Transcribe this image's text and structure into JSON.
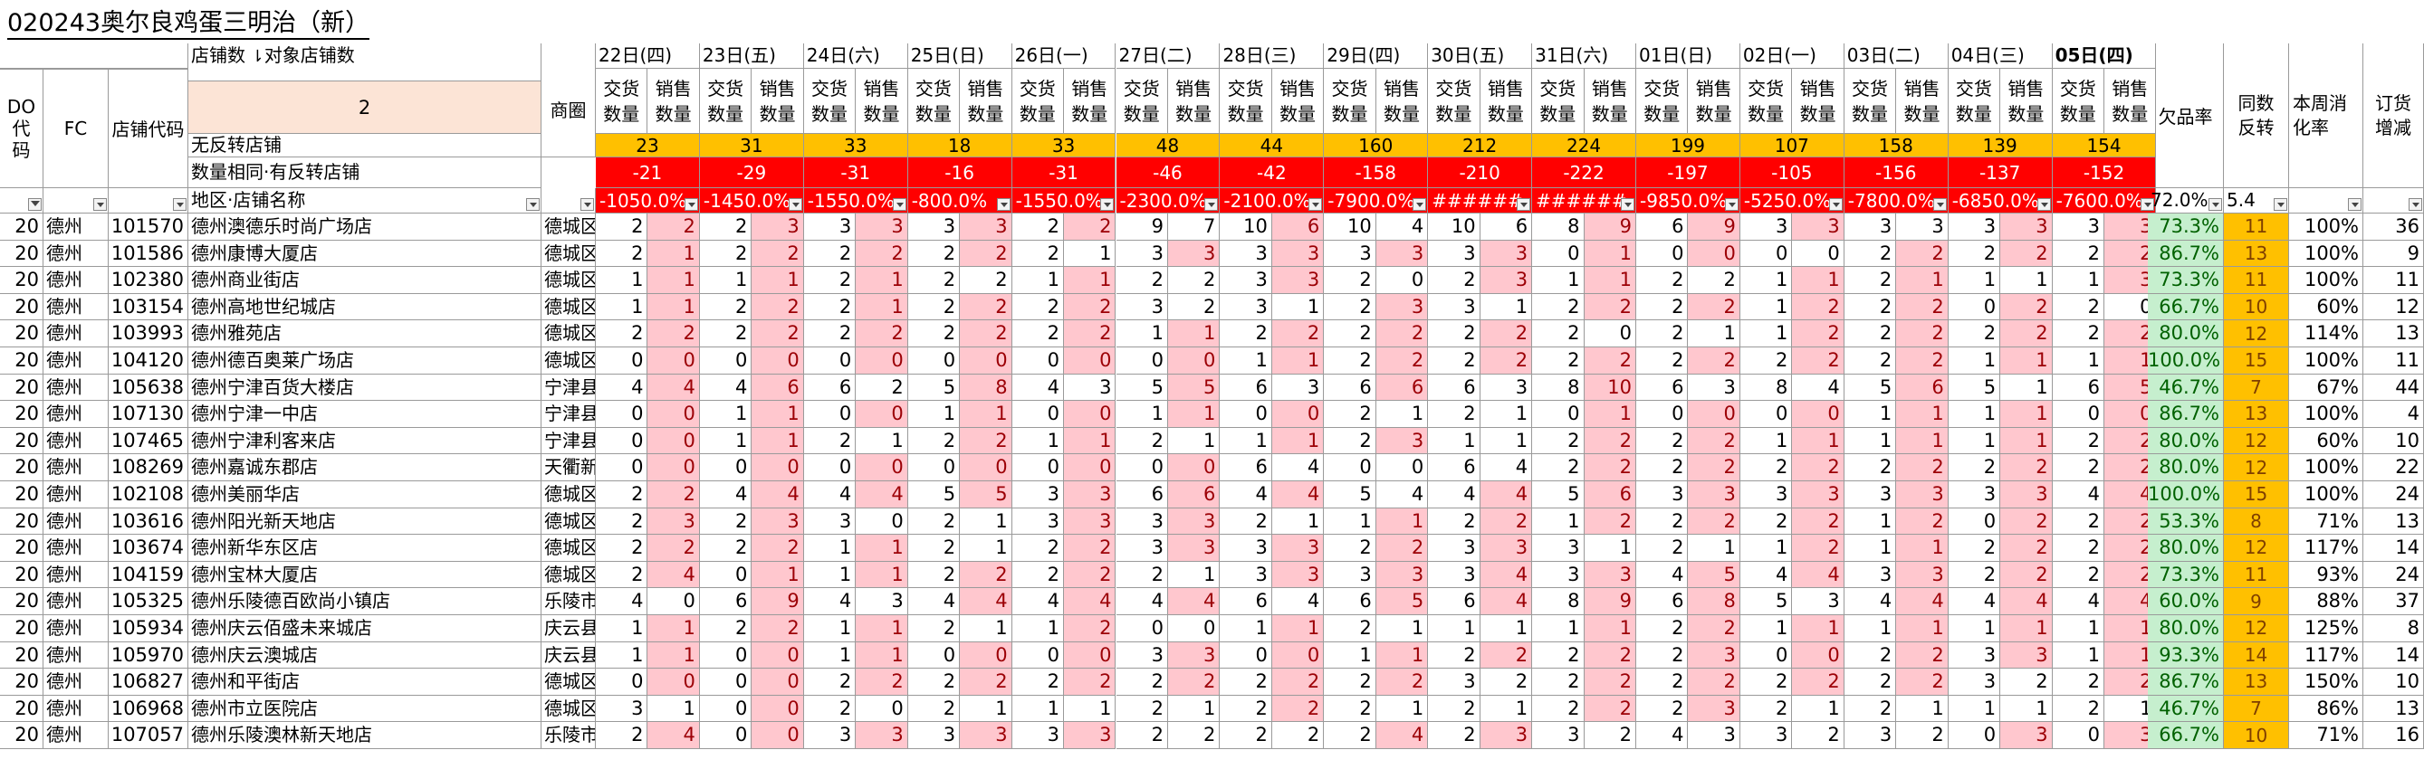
{
  "title": "020243奥尔良鸡蛋三明治（新）",
  "colors": {
    "orange_band": "#ffc000",
    "red_band": "#ff0000",
    "pink_fill": "#ffc7ce",
    "pink_text": "#9c0006",
    "green_fill": "#c6efce",
    "green_text": "#006100",
    "header_peach": "#fce4d6"
  },
  "header": {
    "do_label": "DO\n代\n码",
    "fc_label": "FC",
    "store_code_label": "店铺代码",
    "store_count_label": "店铺数",
    "target_count_label": "对象店铺数",
    "sort_icon": "sort-desc-icon",
    "store_count_value": "2",
    "district_label": "商圈",
    "row_no_return_label": "无反转店铺",
    "row_same_qty_label": "数量相同·有反转店铺",
    "row_region_label": "地区·店铺名称",
    "delivery_label": "交货\n数量",
    "sales_label": "销售\n数量",
    "shortage_rate_label": "欠品率",
    "same_reverse_label": "同数\n反转",
    "week_rate_label": "本周消\n化率",
    "order_change_label": "订货\n增减",
    "summary_shortage": "72.0%",
    "summary_reverse": "5.4"
  },
  "dates": [
    {
      "label": "22日(四)",
      "yellow": "23",
      "red": "-21",
      "pct": "-1050.0%"
    },
    {
      "label": "23日(五)",
      "yellow": "31",
      "red": "-29",
      "pct": "-1450.0%"
    },
    {
      "label": "24日(六)",
      "yellow": "33",
      "red": "-31",
      "pct": "-1550.0%"
    },
    {
      "label": "25日(日)",
      "yellow": "18",
      "red": "-16",
      "pct": "-800.0%"
    },
    {
      "label": "26日(一)",
      "yellow": "33",
      "red": "-31",
      "pct": "-1550.0%"
    },
    {
      "label": "27日(二)",
      "yellow": "48",
      "red": "-46",
      "pct": "-2300.0%"
    },
    {
      "label": "28日(三)",
      "yellow": "44",
      "red": "-42",
      "pct": "-2100.0%"
    },
    {
      "label": "29日(四)",
      "yellow": "160",
      "red": "-158",
      "pct": "-7900.0%"
    },
    {
      "label": "30日(五)",
      "yellow": "212",
      "red": "-210",
      "pct": "######"
    },
    {
      "label": "31日(六)",
      "yellow": "224",
      "red": "-222",
      "pct": "######"
    },
    {
      "label": "01日(日)",
      "yellow": "199",
      "red": "-197",
      "pct": "-9850.0%"
    },
    {
      "label": "02日(一)",
      "yellow": "107",
      "red": "-105",
      "pct": "-5250.0%"
    },
    {
      "label": "03日(二)",
      "yellow": "158",
      "red": "-156",
      "pct": "-7800.0%"
    },
    {
      "label": "04日(三)",
      "yellow": "139",
      "red": "-137",
      "pct": "-6850.0%"
    },
    {
      "label": "05日(四)",
      "yellow": "154",
      "red": "-152",
      "pct": "-7600.0%"
    }
  ],
  "rows": [
    {
      "do": "20",
      "fc": "德州",
      "code": "101570",
      "name": "德州澳德乐时尚广场店",
      "area": "德城区",
      "v": [
        2,
        2,
        2,
        3,
        3,
        3,
        3,
        3,
        2,
        2,
        9,
        7,
        10,
        6,
        10,
        4,
        10,
        6,
        8,
        9,
        6,
        9,
        3,
        3,
        3,
        3,
        3,
        3,
        3,
        3
      ],
      "pink": [
        1,
        3,
        5,
        7,
        9,
        13,
        19,
        21,
        23,
        27,
        29
      ],
      "rate": "73.3%",
      "rev": "11",
      "cons": "100%",
      "ord": "36"
    },
    {
      "do": "20",
      "fc": "德州",
      "code": "101586",
      "name": "德州康博大厦店",
      "area": "德城区",
      "v": [
        2,
        1,
        2,
        2,
        2,
        2,
        2,
        2,
        2,
        1,
        3,
        3,
        3,
        3,
        3,
        3,
        3,
        3,
        0,
        1,
        0,
        0,
        0,
        0,
        2,
        2,
        2,
        2,
        2,
        2
      ],
      "pink": [
        1,
        3,
        5,
        7,
        11,
        13,
        15,
        17,
        19,
        21,
        25,
        27,
        29
      ],
      "rate": "86.7%",
      "rev": "13",
      "cons": "100%",
      "ord": "9"
    },
    {
      "do": "20",
      "fc": "德州",
      "code": "102380",
      "name": "德州商业街店",
      "area": "德城区",
      "v": [
        1,
        1,
        1,
        1,
        2,
        1,
        2,
        2,
        1,
        1,
        2,
        2,
        3,
        3,
        2,
        0,
        2,
        3,
        1,
        1,
        2,
        2,
        1,
        1,
        2,
        1,
        1,
        1,
        1,
        3
      ],
      "pink": [
        1,
        3,
        5,
        9,
        13,
        17,
        19,
        23,
        25,
        29
      ],
      "rate": "73.3%",
      "rev": "11",
      "cons": "100%",
      "ord": "11"
    },
    {
      "do": "20",
      "fc": "德州",
      "code": "103154",
      "name": "德州高地世纪城店",
      "area": "德城区",
      "v": [
        1,
        1,
        2,
        2,
        2,
        1,
        2,
        2,
        2,
        2,
        3,
        2,
        3,
        1,
        2,
        3,
        3,
        1,
        2,
        2,
        2,
        2,
        1,
        2,
        2,
        2,
        0,
        2,
        2,
        0
      ],
      "pink": [
        1,
        3,
        5,
        7,
        9,
        15,
        19,
        21,
        23,
        25,
        27
      ],
      "rate": "66.7%",
      "rev": "10",
      "cons": "60%",
      "ord": "12"
    },
    {
      "do": "20",
      "fc": "德州",
      "code": "103993",
      "name": "德州雅苑店",
      "area": "德城区",
      "v": [
        2,
        2,
        2,
        2,
        2,
        2,
        2,
        2,
        2,
        2,
        1,
        1,
        2,
        2,
        2,
        2,
        2,
        2,
        2,
        0,
        2,
        1,
        1,
        2,
        2,
        2,
        2,
        2,
        2,
        2
      ],
      "pink": [
        1,
        3,
        5,
        7,
        9,
        11,
        13,
        15,
        17,
        23,
        25,
        27,
        29
      ],
      "rate": "80.0%",
      "rev": "12",
      "cons": "114%",
      "ord": "13"
    },
    {
      "do": "20",
      "fc": "德州",
      "code": "104120",
      "name": "德州德百奥莱广场店",
      "area": "德城区",
      "v": [
        0,
        0,
        0,
        0,
        0,
        0,
        0,
        0,
        0,
        0,
        0,
        0,
        1,
        1,
        2,
        2,
        2,
        2,
        2,
        2,
        2,
        2,
        2,
        2,
        2,
        2,
        1,
        1,
        1,
        1
      ],
      "pink": [
        1,
        3,
        5,
        7,
        9,
        11,
        13,
        15,
        17,
        19,
        21,
        23,
        25,
        27,
        29
      ],
      "rate": "100.0%",
      "rev": "15",
      "cons": "100%",
      "ord": "11"
    },
    {
      "do": "20",
      "fc": "德州",
      "code": "105638",
      "name": "德州宁津百货大楼店",
      "area": "宁津县",
      "v": [
        4,
        4,
        4,
        6,
        6,
        2,
        5,
        8,
        4,
        3,
        5,
        5,
        6,
        3,
        6,
        6,
        6,
        3,
        8,
        10,
        6,
        3,
        8,
        4,
        5,
        6,
        5,
        1,
        6,
        5
      ],
      "pink": [
        1,
        3,
        7,
        11,
        15,
        19,
        25,
        29
      ],
      "rate": "46.7%",
      "rev": "7",
      "cons": "67%",
      "ord": "44"
    },
    {
      "do": "20",
      "fc": "德州",
      "code": "107130",
      "name": "德州宁津一中店",
      "area": "宁津县",
      "v": [
        0,
        0,
        1,
        1,
        0,
        0,
        1,
        1,
        0,
        0,
        1,
        1,
        0,
        0,
        2,
        1,
        2,
        1,
        0,
        1,
        0,
        0,
        0,
        0,
        1,
        1,
        1,
        1,
        0,
        0
      ],
      "pink": [
        1,
        3,
        5,
        7,
        9,
        11,
        13,
        19,
        21,
        23,
        25,
        27,
        29
      ],
      "rate": "86.7%",
      "rev": "13",
      "cons": "100%",
      "ord": "4"
    },
    {
      "do": "20",
      "fc": "德州",
      "code": "107465",
      "name": "德州宁津利客来店",
      "area": "宁津县",
      "v": [
        0,
        0,
        1,
        1,
        2,
        1,
        2,
        2,
        1,
        1,
        2,
        1,
        1,
        1,
        2,
        3,
        1,
        1,
        2,
        2,
        2,
        2,
        1,
        1,
        1,
        1,
        1,
        1,
        2,
        2
      ],
      "pink": [
        1,
        3,
        7,
        9,
        13,
        15,
        19,
        21,
        23,
        25,
        27,
        29
      ],
      "rate": "80.0%",
      "rev": "12",
      "cons": "60%",
      "ord": "10"
    },
    {
      "do": "20",
      "fc": "德州",
      "code": "108269",
      "name": "德州嘉诚东郡店",
      "area": "天衢新",
      "v": [
        0,
        0,
        0,
        0,
        0,
        0,
        0,
        0,
        0,
        0,
        0,
        0,
        6,
        4,
        0,
        0,
        6,
        4,
        2,
        2,
        2,
        2,
        2,
        2,
        2,
        2,
        2,
        2,
        2,
        2
      ],
      "pink": [
        1,
        3,
        5,
        7,
        9,
        11,
        19,
        21,
        23,
        25,
        27,
        29
      ],
      "rate": "80.0%",
      "rev": "12",
      "cons": "100%",
      "ord": "22"
    },
    {
      "do": "20",
      "fc": "德州",
      "code": "102108",
      "name": "德州美丽华店",
      "area": "德城区",
      "v": [
        2,
        2,
        4,
        4,
        4,
        4,
        5,
        5,
        3,
        3,
        6,
        6,
        4,
        4,
        5,
        4,
        4,
        4,
        5,
        6,
        3,
        3,
        3,
        3,
        3,
        3,
        3,
        3,
        4,
        4
      ],
      "pink": [
        1,
        3,
        5,
        7,
        9,
        11,
        13,
        17,
        19,
        21,
        23,
        25,
        27,
        29
      ],
      "rate": "100.0%",
      "rev": "15",
      "cons": "100%",
      "ord": "24"
    },
    {
      "do": "20",
      "fc": "德州",
      "code": "103616",
      "name": "德州阳光新天地店",
      "area": "德城区",
      "v": [
        2,
        3,
        2,
        3,
        3,
        0,
        2,
        1,
        3,
        3,
        3,
        3,
        2,
        1,
        1,
        1,
        2,
        2,
        1,
        2,
        2,
        2,
        2,
        2,
        1,
        2,
        0,
        2,
        2,
        2
      ],
      "pink": [
        1,
        3,
        9,
        11,
        15,
        17,
        19,
        21,
        23,
        25,
        27,
        29
      ],
      "rate": "53.3%",
      "rev": "8",
      "cons": "71%",
      "ord": "13"
    },
    {
      "do": "20",
      "fc": "德州",
      "code": "103674",
      "name": "德州新华东区店",
      "area": "德城区",
      "v": [
        2,
        2,
        2,
        2,
        1,
        1,
        2,
        1,
        2,
        2,
        3,
        3,
        3,
        3,
        2,
        2,
        3,
        3,
        3,
        1,
        2,
        1,
        1,
        2,
        1,
        1,
        2,
        2,
        2,
        2
      ],
      "pink": [
        1,
        3,
        5,
        9,
        11,
        13,
        15,
        17,
        23,
        25,
        27,
        29
      ],
      "rate": "80.0%",
      "rev": "12",
      "cons": "117%",
      "ord": "14"
    },
    {
      "do": "20",
      "fc": "德州",
      "code": "104159",
      "name": "德州宝林大厦店",
      "area": "德城区",
      "v": [
        2,
        4,
        0,
        1,
        1,
        1,
        2,
        2,
        2,
        2,
        2,
        1,
        3,
        3,
        3,
        3,
        3,
        4,
        3,
        3,
        4,
        5,
        4,
        4,
        3,
        3,
        2,
        2,
        2,
        2
      ],
      "pink": [
        1,
        3,
        5,
        7,
        9,
        13,
        15,
        17,
        19,
        21,
        23,
        25,
        27,
        29
      ],
      "rate": "73.3%",
      "rev": "11",
      "cons": "93%",
      "ord": "24"
    },
    {
      "do": "20",
      "fc": "德州",
      "code": "105325",
      "name": "德州乐陵德百欧尚小镇店",
      "area": "乐陵市",
      "v": [
        4,
        0,
        6,
        9,
        4,
        3,
        4,
        4,
        4,
        4,
        4,
        4,
        6,
        4,
        6,
        5,
        6,
        4,
        8,
        9,
        6,
        8,
        5,
        3,
        4,
        4,
        4,
        4,
        4,
        4
      ],
      "pink": [
        3,
        7,
        9,
        11,
        15,
        17,
        19,
        21,
        25,
        27,
        29
      ],
      "rate": "60.0%",
      "rev": "9",
      "cons": "88%",
      "ord": "37"
    },
    {
      "do": "20",
      "fc": "德州",
      "code": "105934",
      "name": "德州庆云佰盛未来城店",
      "area": "庆云县",
      "v": [
        1,
        1,
        2,
        2,
        1,
        1,
        2,
        1,
        1,
        2,
        0,
        0,
        1,
        1,
        2,
        1,
        1,
        1,
        1,
        1,
        2,
        2,
        1,
        1,
        1,
        1,
        1,
        1,
        1,
        1
      ],
      "pink": [
        1,
        3,
        5,
        9,
        13,
        19,
        21,
        23,
        25,
        27,
        29
      ],
      "rate": "80.0%",
      "rev": "12",
      "cons": "125%",
      "ord": "8"
    },
    {
      "do": "20",
      "fc": "德州",
      "code": "105970",
      "name": "德州庆云澳城店",
      "area": "庆云县",
      "v": [
        1,
        1,
        0,
        0,
        1,
        1,
        0,
        0,
        0,
        0,
        3,
        3,
        0,
        0,
        1,
        1,
        2,
        2,
        2,
        2,
        2,
        3,
        0,
        0,
        2,
        2,
        3,
        3,
        1,
        1
      ],
      "pink": [
        1,
        3,
        5,
        7,
        9,
        11,
        13,
        15,
        17,
        19,
        21,
        23,
        25,
        27,
        29
      ],
      "rate": "93.3%",
      "rev": "14",
      "cons": "117%",
      "ord": "14"
    },
    {
      "do": "20",
      "fc": "德州",
      "code": "106827",
      "name": "德州和平街店",
      "area": "德城区",
      "v": [
        0,
        0,
        0,
        0,
        2,
        2,
        2,
        2,
        2,
        2,
        2,
        2,
        2,
        2,
        2,
        2,
        3,
        2,
        2,
        2,
        2,
        2,
        2,
        2,
        2,
        2,
        3,
        2,
        2,
        2
      ],
      "pink": [
        1,
        3,
        5,
        7,
        9,
        11,
        13,
        15,
        19,
        21,
        23,
        25,
        29
      ],
      "rate": "86.7%",
      "rev": "13",
      "cons": "150%",
      "ord": "10"
    },
    {
      "do": "20",
      "fc": "德州",
      "code": "106968",
      "name": "德州市立医院店",
      "area": "德城区",
      "v": [
        3,
        1,
        0,
        0,
        2,
        0,
        2,
        1,
        1,
        1,
        2,
        1,
        2,
        2,
        2,
        1,
        2,
        1,
        2,
        2,
        2,
        3,
        2,
        1,
        2,
        1,
        1,
        1,
        2,
        1
      ],
      "pink": [
        3,
        13,
        19,
        21
      ],
      "rate": "46.7%",
      "rev": "7",
      "cons": "86%",
      "ord": "13"
    },
    {
      "do": "20",
      "fc": "德州",
      "code": "107057",
      "name": "德州乐陵澳林新天地店",
      "area": "乐陵市",
      "v": [
        2,
        4,
        0,
        0,
        3,
        3,
        3,
        3,
        3,
        3,
        2,
        2,
        2,
        2,
        2,
        4,
        2,
        3,
        3,
        2,
        4,
        3,
        3,
        2,
        3,
        2,
        0,
        3,
        0,
        3
      ],
      "pink": [
        1,
        3,
        5,
        7,
        9,
        15,
        17,
        27,
        29
      ],
      "rate": "66.7%",
      "rev": "10",
      "cons": "71%",
      "ord": "16"
    }
  ]
}
